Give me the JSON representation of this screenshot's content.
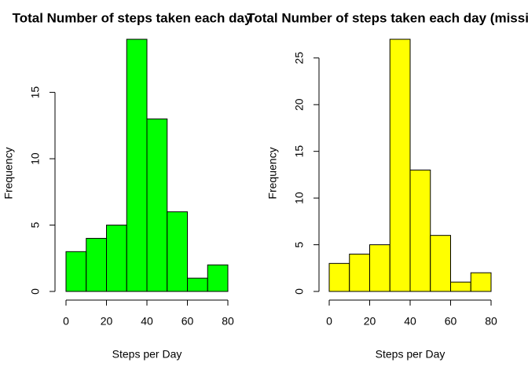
{
  "chart_data": [
    {
      "type": "histogram",
      "title": "Total Number of steps taken each day",
      "xlabel": "Steps per Day",
      "ylabel": "Frequency",
      "bins": [
        0,
        10,
        20,
        30,
        40,
        50,
        60,
        70,
        80
      ],
      "values": [
        3,
        4,
        5,
        19,
        13,
        6,
        1,
        2
      ],
      "color": "#00ff00",
      "xlim": [
        0,
        80
      ],
      "xticks": [
        0,
        20,
        40,
        60,
        80
      ],
      "ylim": [
        0,
        19
      ],
      "yticks": [
        0,
        5,
        10,
        15
      ]
    },
    {
      "type": "histogram",
      "title": "Total Number of steps taken each day (missing",
      "xlabel": "Steps per Day",
      "ylabel": "Frequency",
      "bins": [
        0,
        10,
        20,
        30,
        40,
        50,
        60,
        70,
        80
      ],
      "values": [
        3,
        4,
        5,
        27,
        13,
        6,
        1,
        2
      ],
      "color": "#ffff00",
      "xlim": [
        0,
        80
      ],
      "xticks": [
        0,
        20,
        40,
        60,
        80
      ],
      "ylim": [
        0,
        27
      ],
      "yticks": [
        0,
        5,
        10,
        15,
        20,
        25
      ]
    }
  ]
}
